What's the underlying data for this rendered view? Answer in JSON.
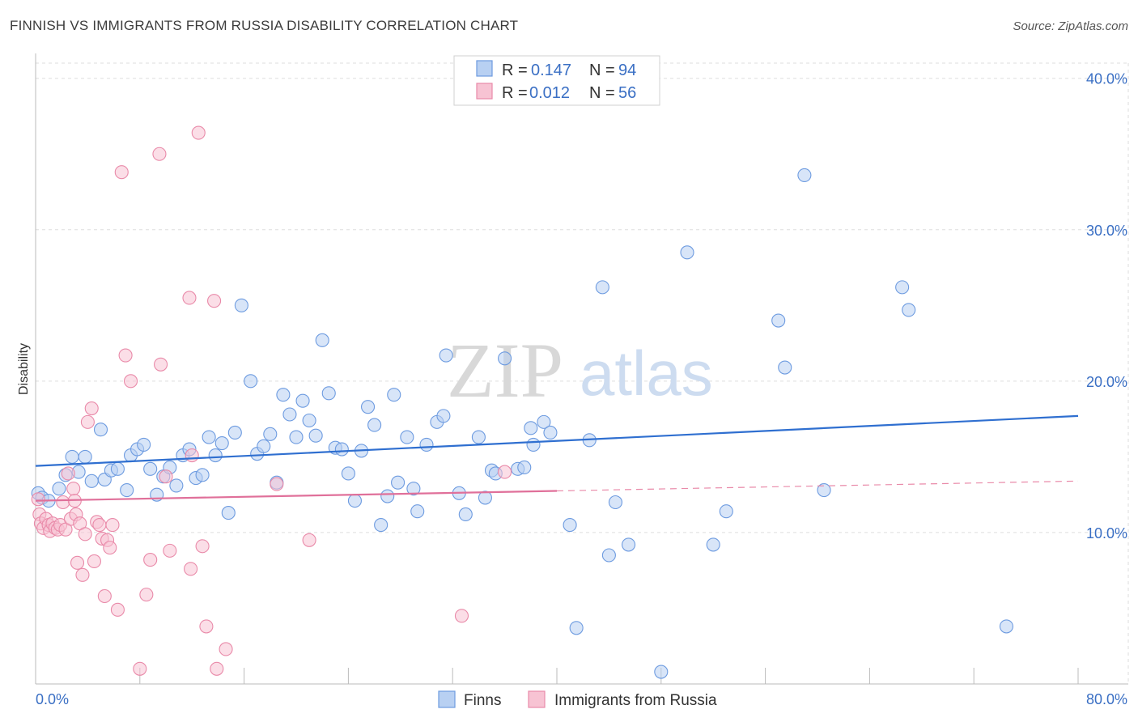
{
  "header": {
    "title": "FINNISH VS IMMIGRANTS FROM RUSSIA DISABILITY CORRELATION CHART",
    "source": "Source: ZipAtlas.com"
  },
  "watermark": {
    "zip": "ZIP",
    "atlas": "atlas"
  },
  "chart_data": {
    "type": "scatter",
    "title": "FINNISH VS IMMIGRANTS FROM RUSSIA DISABILITY CORRELATION CHART",
    "xlabel": "",
    "ylabel": "Disability",
    "xlim": [
      0,
      80
    ],
    "ylim": [
      0,
      41
    ],
    "x_tick_labels": {
      "min": "0.0%",
      "max": "80.0%"
    },
    "y_ticks": [
      10,
      20,
      30,
      40
    ],
    "y_tick_labels": [
      "10.0%",
      "20.0%",
      "30.0%",
      "40.0%"
    ],
    "grid": true,
    "legend_top": [
      {
        "r_label": "R =",
        "r_value": "0.147",
        "n_label": "N =",
        "n_value": "94"
      },
      {
        "r_label": "R =",
        "r_value": "0.012",
        "n_label": "N =",
        "n_value": "56"
      }
    ],
    "series": [
      {
        "name": "Finns",
        "color": "#6d9be0",
        "fill": "#b8d0f2",
        "trend": {
          "x0": 0,
          "y0": 14.4,
          "x1": 80,
          "y1": 17.7,
          "dash_from": null
        },
        "points": [
          [
            0.2,
            12.6
          ],
          [
            0.5,
            12.3
          ],
          [
            1,
            12.1
          ],
          [
            1.8,
            12.9
          ],
          [
            2.3,
            13.8
          ],
          [
            2.8,
            15.0
          ],
          [
            3.3,
            14.0
          ],
          [
            3.8,
            15.0
          ],
          [
            4.3,
            13.4
          ],
          [
            5.0,
            16.8
          ],
          [
            5.3,
            13.5
          ],
          [
            5.8,
            14.1
          ],
          [
            6.3,
            14.2
          ],
          [
            7.0,
            12.8
          ],
          [
            7.3,
            15.1
          ],
          [
            7.8,
            15.5
          ],
          [
            8.3,
            15.8
          ],
          [
            8.8,
            14.2
          ],
          [
            9.3,
            12.5
          ],
          [
            9.8,
            13.7
          ],
          [
            10.3,
            14.3
          ],
          [
            10.8,
            13.1
          ],
          [
            11.3,
            15.1
          ],
          [
            11.8,
            15.5
          ],
          [
            12.3,
            13.6
          ],
          [
            12.8,
            13.8
          ],
          [
            13.3,
            16.3
          ],
          [
            13.8,
            15.1
          ],
          [
            14.3,
            15.9
          ],
          [
            14.8,
            11.3
          ],
          [
            15.3,
            16.6
          ],
          [
            15.8,
            25.0
          ],
          [
            16.5,
            20.0
          ],
          [
            17.0,
            15.2
          ],
          [
            17.5,
            15.7
          ],
          [
            18.0,
            16.5
          ],
          [
            18.5,
            13.3
          ],
          [
            19.0,
            19.1
          ],
          [
            19.5,
            17.8
          ],
          [
            20.0,
            16.3
          ],
          [
            20.5,
            18.7
          ],
          [
            21.0,
            17.4
          ],
          [
            21.5,
            16.4
          ],
          [
            22.0,
            22.7
          ],
          [
            22.5,
            19.2
          ],
          [
            23.0,
            15.6
          ],
          [
            23.5,
            15.5
          ],
          [
            24.0,
            13.9
          ],
          [
            24.5,
            12.1
          ],
          [
            25.0,
            15.4
          ],
          [
            25.5,
            18.3
          ],
          [
            26.0,
            17.1
          ],
          [
            26.5,
            10.5
          ],
          [
            27.0,
            12.4
          ],
          [
            27.5,
            19.1
          ],
          [
            27.8,
            13.3
          ],
          [
            28.5,
            16.3
          ],
          [
            29.0,
            12.9
          ],
          [
            29.3,
            11.4
          ],
          [
            30.0,
            15.8
          ],
          [
            30.8,
            17.3
          ],
          [
            31.3,
            17.7
          ],
          [
            31.5,
            21.7
          ],
          [
            32.5,
            12.6
          ],
          [
            33.0,
            11.2
          ],
          [
            34.0,
            16.3
          ],
          [
            34.5,
            12.3
          ],
          [
            35.0,
            14.1
          ],
          [
            35.3,
            13.9
          ],
          [
            36.0,
            21.5
          ],
          [
            37.0,
            14.2
          ],
          [
            37.5,
            14.3
          ],
          [
            38.0,
            16.9
          ],
          [
            38.2,
            15.8
          ],
          [
            39.0,
            17.3
          ],
          [
            39.5,
            16.6
          ],
          [
            41.0,
            10.5
          ],
          [
            41.5,
            3.7
          ],
          [
            42.5,
            16.1
          ],
          [
            43.5,
            26.2
          ],
          [
            44.0,
            8.5
          ],
          [
            44.5,
            12.0
          ],
          [
            45.5,
            9.2
          ],
          [
            48.0,
            0.8
          ],
          [
            50.0,
            28.5
          ],
          [
            52.0,
            9.2
          ],
          [
            53.0,
            11.4
          ],
          [
            57.0,
            24.0
          ],
          [
            57.5,
            20.9
          ],
          [
            59.0,
            33.6
          ],
          [
            60.5,
            12.8
          ],
          [
            66.5,
            26.2
          ],
          [
            67.0,
            24.7
          ],
          [
            74.5,
            3.8
          ]
        ]
      },
      {
        "name": "Immigrants from Russia",
        "color": "#e98aa9",
        "fill": "#f7c3d3",
        "trend": {
          "x0": 0,
          "y0": 12.1,
          "x1": 80,
          "y1": 13.4,
          "dash_from": 40
        },
        "points": [
          [
            0.2,
            12.2
          ],
          [
            0.3,
            11.2
          ],
          [
            0.4,
            10.6
          ],
          [
            0.6,
            10.3
          ],
          [
            0.8,
            10.9
          ],
          [
            1.0,
            10.5
          ],
          [
            1.1,
            10.1
          ],
          [
            1.3,
            10.6
          ],
          [
            1.5,
            10.3
          ],
          [
            1.7,
            10.2
          ],
          [
            1.9,
            10.5
          ],
          [
            2.1,
            12.0
          ],
          [
            2.3,
            10.2
          ],
          [
            2.5,
            13.9
          ],
          [
            2.7,
            10.9
          ],
          [
            2.9,
            12.9
          ],
          [
            3.0,
            12.1
          ],
          [
            3.1,
            11.2
          ],
          [
            3.2,
            8.0
          ],
          [
            3.4,
            10.6
          ],
          [
            3.6,
            7.2
          ],
          [
            3.8,
            9.9
          ],
          [
            4.0,
            17.3
          ],
          [
            4.3,
            18.2
          ],
          [
            4.5,
            8.1
          ],
          [
            4.7,
            10.7
          ],
          [
            4.9,
            10.5
          ],
          [
            5.1,
            9.6
          ],
          [
            5.3,
            5.8
          ],
          [
            5.5,
            9.5
          ],
          [
            5.7,
            9.0
          ],
          [
            5.9,
            10.5
          ],
          [
            6.3,
            4.9
          ],
          [
            6.6,
            33.8
          ],
          [
            6.9,
            21.7
          ],
          [
            7.3,
            20.0
          ],
          [
            8.0,
            1.0
          ],
          [
            8.5,
            5.9
          ],
          [
            8.8,
            8.2
          ],
          [
            9.5,
            35.0
          ],
          [
            9.6,
            21.1
          ],
          [
            10.0,
            13.7
          ],
          [
            10.3,
            8.8
          ],
          [
            11.8,
            25.5
          ],
          [
            11.9,
            7.6
          ],
          [
            12.0,
            15.1
          ],
          [
            12.5,
            36.4
          ],
          [
            12.8,
            9.1
          ],
          [
            13.1,
            3.8
          ],
          [
            13.7,
            25.3
          ],
          [
            13.9,
            1.0
          ],
          [
            14.6,
            2.3
          ],
          [
            18.5,
            13.2
          ],
          [
            21.0,
            9.5
          ],
          [
            32.7,
            4.5
          ],
          [
            36.0,
            14.0
          ]
        ]
      }
    ]
  },
  "legend_bottom": [
    {
      "label": "Finns",
      "fill": "#b8d0f2",
      "stroke": "#6d9be0"
    },
    {
      "label": "Immigrants from Russia",
      "fill": "#f7c3d3",
      "stroke": "#e98aa9"
    }
  ]
}
